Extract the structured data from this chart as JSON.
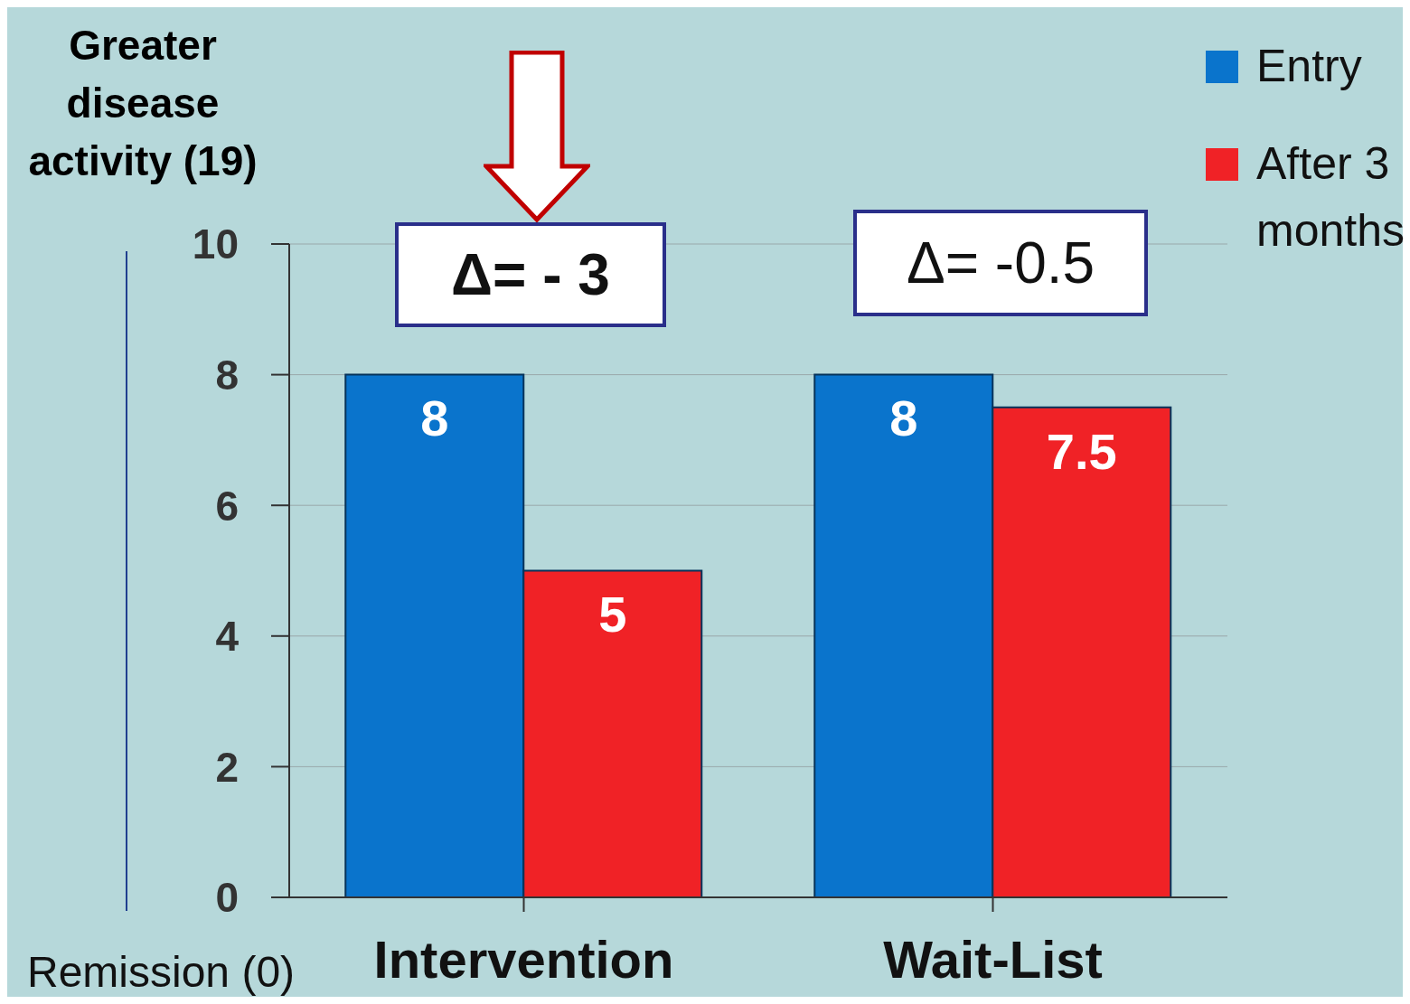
{
  "chart_data": {
    "type": "bar",
    "ylabel": "Greater disease activity (19)",
    "categories": [
      "Intervention",
      "Wait-List"
    ],
    "series": [
      {
        "name": "Entry",
        "color": "#0a74cc",
        "values": [
          8,
          8
        ]
      },
      {
        "name": "After 3 months",
        "color": "#f02226",
        "values": [
          5,
          7.5
        ]
      }
    ],
    "ylim": [
      0,
      10
    ],
    "yticks": [
      0,
      2,
      4,
      6,
      8,
      10
    ],
    "grid": "y",
    "legend": "top right",
    "data_labels": true,
    "annotations": [
      "Δ= - 3",
      "Δ= -0.5",
      "Remission (0)"
    ]
  }
}
